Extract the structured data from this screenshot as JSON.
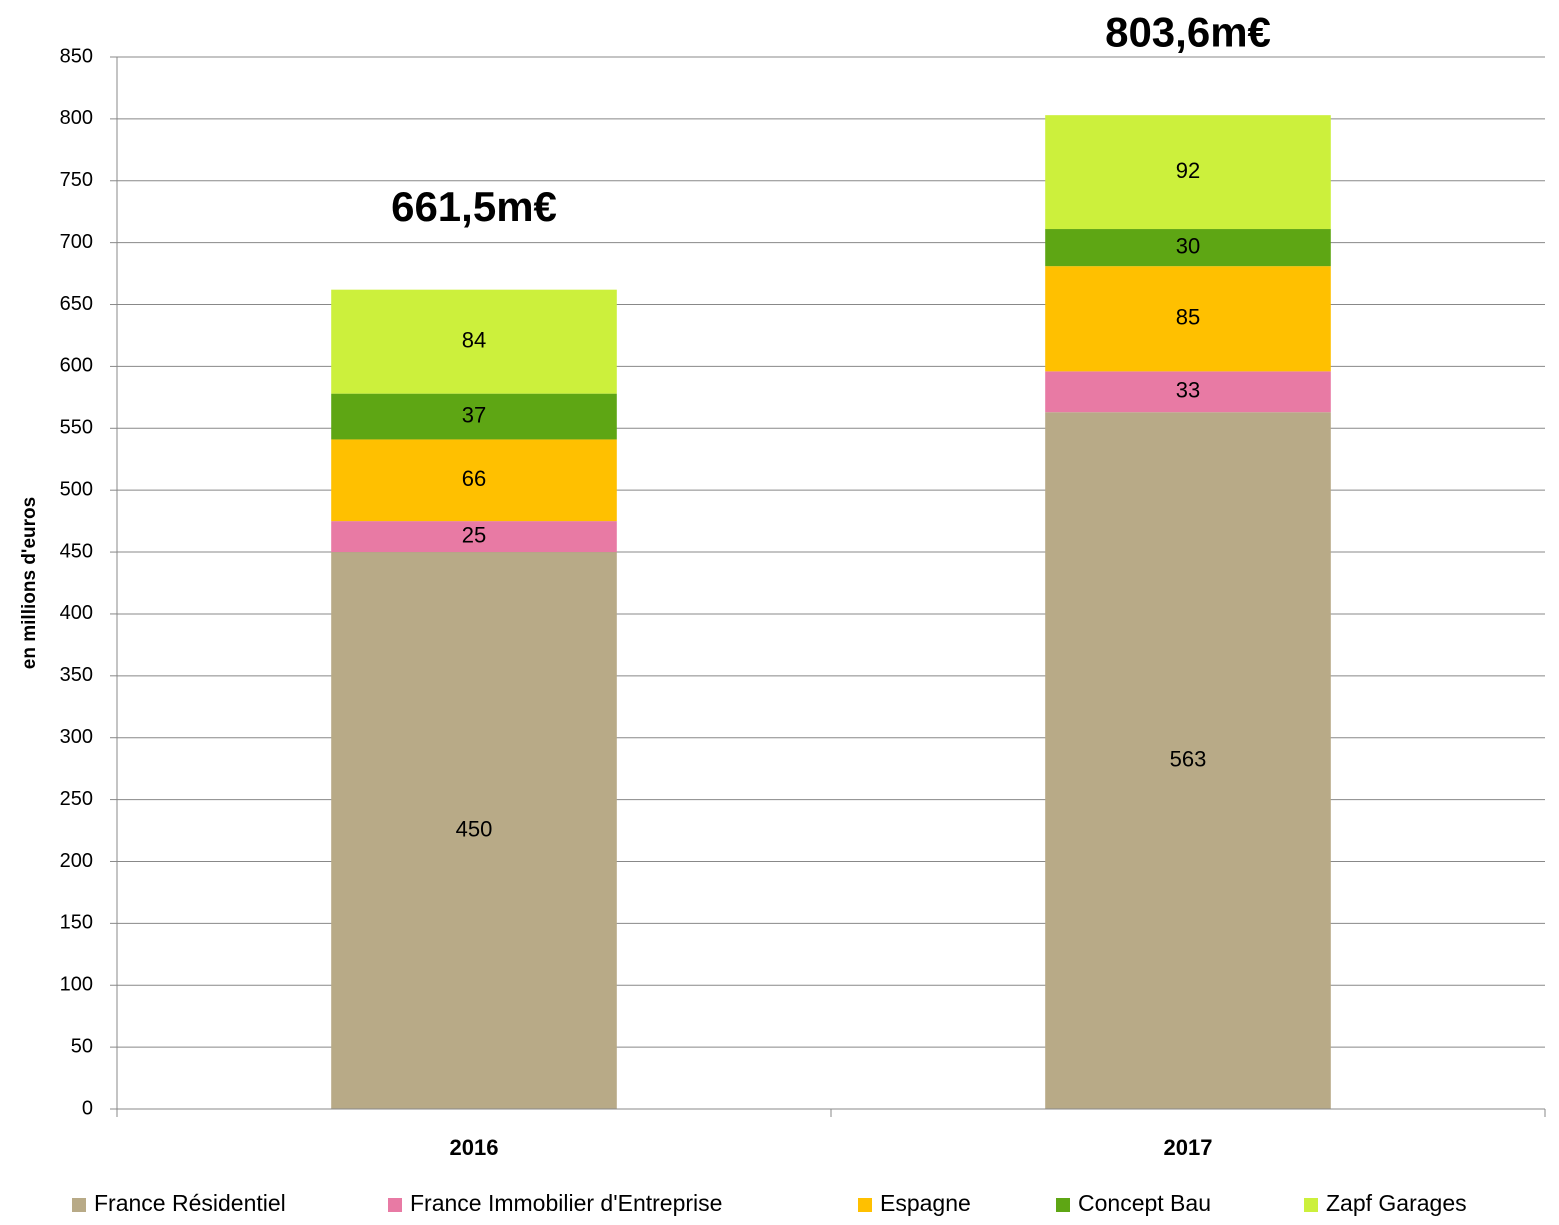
{
  "chart_data": {
    "type": "stacked_bar",
    "y_axis_label": "en millions d'euros",
    "categories": [
      "2016",
      "2017"
    ],
    "total_labels": [
      "661,5m€",
      "803,6m€"
    ],
    "series": [
      {
        "name": "France Résidentiel",
        "color": "#b8aa87",
        "values": [
          450,
          563
        ]
      },
      {
        "name": "France Immobilier d'Entreprise",
        "color": "#e87aa4",
        "values": [
          25,
          33
        ]
      },
      {
        "name": "Espagne",
        "color": "#ffc000",
        "values": [
          66,
          85
        ]
      },
      {
        "name": "Concept Bau",
        "color": "#5ea614",
        "values": [
          37,
          30
        ]
      },
      {
        "name": "Zapf Garages",
        "color": "#ccf03c",
        "values": [
          84,
          92
        ]
      }
    ],
    "ylim": [
      0,
      850
    ],
    "yticks": [
      0,
      50,
      100,
      150,
      200,
      250,
      300,
      350,
      400,
      450,
      500,
      550,
      600,
      650,
      700,
      750,
      800,
      850
    ],
    "grid": true,
    "legend": "bottom"
  }
}
